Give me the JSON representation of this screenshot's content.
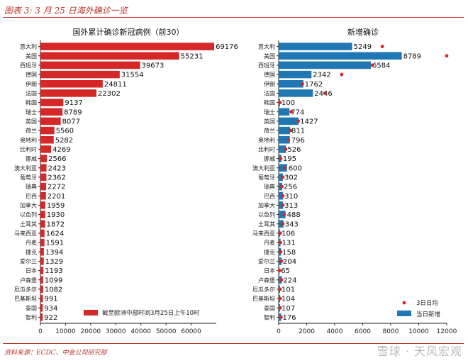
{
  "header": {
    "title": "图表 3: 3 月 25 日海外确诊一览"
  },
  "footer": {
    "source": "资料来源：ECDC、中金公司研究部",
    "watermark": "雪球 · 天风宏观"
  },
  "colors": {
    "left_bar": "#d62728",
    "right_bar": "#1f77b4",
    "dot": "#d62728",
    "accent": "#c0392b"
  },
  "chart_data": [
    {
      "type": "bar",
      "orientation": "horizontal",
      "title": "国外累计确诊新冠病例（前30）",
      "categories": [
        "意大利",
        "美国",
        "西班牙",
        "德国",
        "伊朗",
        "法国",
        "韩国",
        "瑞士",
        "英国",
        "荷兰",
        "奥地利",
        "比利时",
        "挪威",
        "澳大利亚",
        "葡萄牙",
        "瑞典",
        "巴西",
        "加拿大",
        "以色列",
        "土耳其",
        "马来西亚",
        "丹麦",
        "捷克",
        "爱尔兰",
        "日本",
        "卢森堡",
        "厄瓜多尔",
        "巴基斯坦",
        "泰国",
        "智利"
      ],
      "series": [
        {
          "name": "截至欧洲中部时间3月25日上午10时",
          "values": [
            69176,
            55231,
            39673,
            31554,
            24811,
            22302,
            9137,
            8789,
            8077,
            5560,
            5282,
            4269,
            2566,
            2423,
            2362,
            2272,
            2201,
            1959,
            1930,
            1872,
            1624,
            1591,
            1394,
            1329,
            1193,
            1099,
            1082,
            991,
            934,
            922
          ]
        }
      ],
      "xlim": [
        0,
        70000
      ],
      "xticks": [
        0,
        10000,
        20000,
        30000,
        40000,
        50000,
        60000
      ],
      "legend": "bottom-right",
      "grid": false
    },
    {
      "type": "bar",
      "orientation": "horizontal",
      "title": "新增确诊",
      "categories": [
        "意大利",
        "美国",
        "西班牙",
        "德国",
        "伊朗",
        "法国",
        "韩国",
        "瑞士",
        "英国",
        "荷兰",
        "奥地利",
        "比利时",
        "挪威",
        "澳大利亚",
        "葡萄牙",
        "瑞典",
        "巴西",
        "加拿大",
        "以色列",
        "土耳其",
        "马来西亚",
        "丹麦",
        "捷克",
        "爱尔兰",
        "日本",
        "卢森堡",
        "厄瓜多尔",
        "巴基斯坦",
        "泰国",
        "智利"
      ],
      "series": [
        {
          "name": "当日新增",
          "values": [
            5249,
            8789,
            6584,
            2342,
            1762,
            2446,
            100,
            774,
            1427,
            811,
            796,
            526,
            195,
            600,
            302,
            256,
            310,
            313,
            488,
            343,
            106,
            131,
            158,
            204,
            65,
            224,
            101,
            104,
            107,
            176
          ]
        },
        {
          "name": "3日日均",
          "values": [
            7400,
            12000,
            6700,
            4500,
            1700,
            3300,
            100,
            900,
            1400,
            850,
            700,
            500,
            150,
            430,
            300,
            230,
            300,
            300,
            400,
            300,
            120,
            120,
            150,
            200,
            60,
            200,
            100,
            100,
            110,
            170
          ]
        }
      ],
      "xlim": [
        0,
        12000
      ],
      "xticks": [
        0,
        2000,
        4000,
        6000,
        8000,
        10000,
        12000
      ],
      "legend": "bottom-right",
      "grid": false
    }
  ]
}
